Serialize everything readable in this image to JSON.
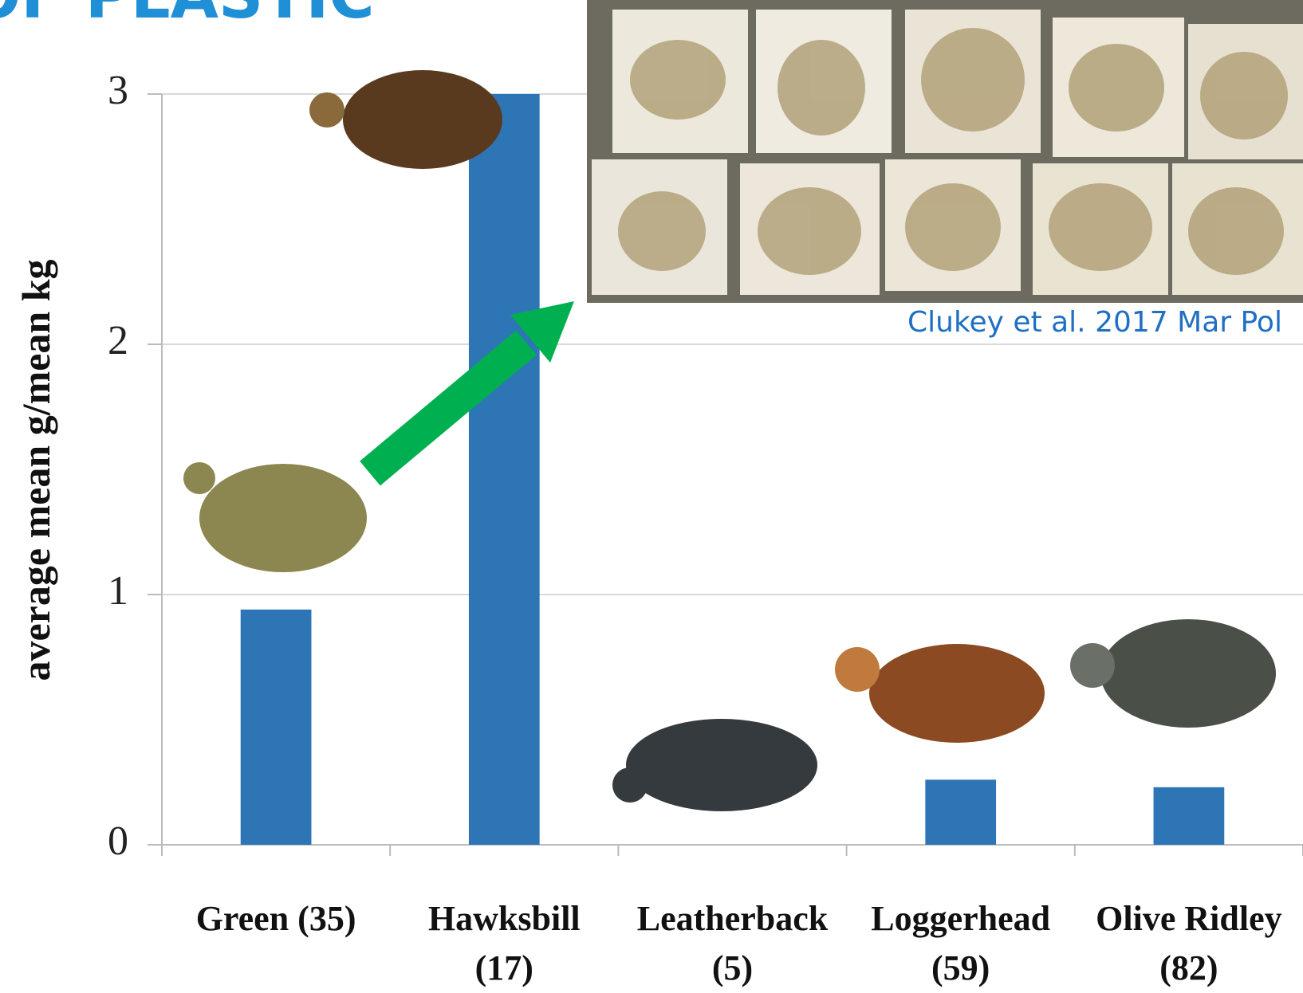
{
  "chart_data": {
    "type": "bar",
    "title": "OF PLASTIC",
    "y_label": "average mean g/mean kg",
    "categories": [
      "Green (35)",
      "Hawksbill\n(17)",
      "Leatherback\n(5)",
      "Loggerhead\n(59)",
      "Olive Ridley\n(82)"
    ],
    "values": [
      0.94,
      3.0,
      0,
      0.26,
      0.23
    ],
    "color": "#2e75b6",
    "ylim": [
      0,
      3
    ],
    "yticks": [
      0,
      1,
      2,
      3
    ],
    "grid": true,
    "annotation": "Clukey et al. 2017 Mar Pol"
  }
}
